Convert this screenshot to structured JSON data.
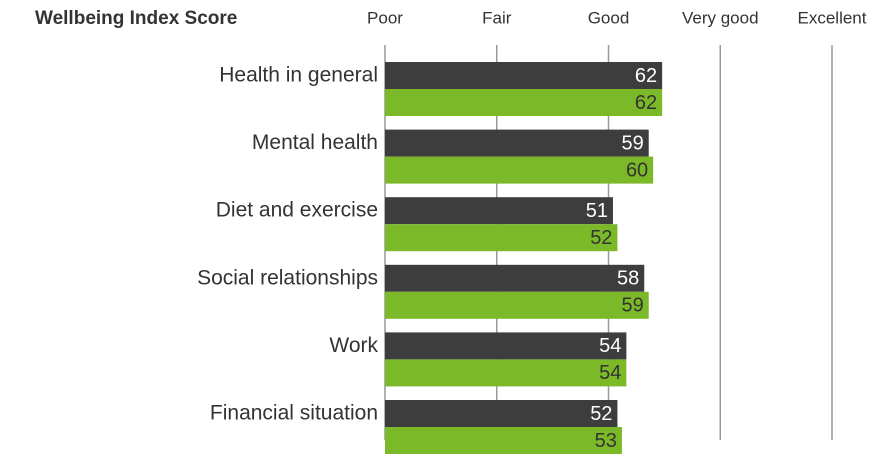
{
  "chart_data": {
    "type": "hbar",
    "title": "Wellbeing Index Score",
    "categories": [
      "Health in general",
      "Mental health",
      "Diet and exercise",
      "Social relationships",
      "Work",
      "Financial situation"
    ],
    "series": [
      {
        "color": "#3d3d3d",
        "values": [
          62,
          59,
          51,
          58,
          54,
          52
        ]
      },
      {
        "color": "#7cb928",
        "values": [
          62,
          60,
          52,
          59,
          54,
          53
        ]
      }
    ],
    "xlim": [
      0,
      100
    ],
    "xticks": [
      {
        "value": 0,
        "label": "Poor"
      },
      {
        "value": 25,
        "label": "Fair"
      },
      {
        "value": 50,
        "label": "Good"
      },
      {
        "value": 75,
        "label": "Very good"
      },
      {
        "value": 100,
        "label": "Excellent"
      }
    ],
    "grid": true
  }
}
